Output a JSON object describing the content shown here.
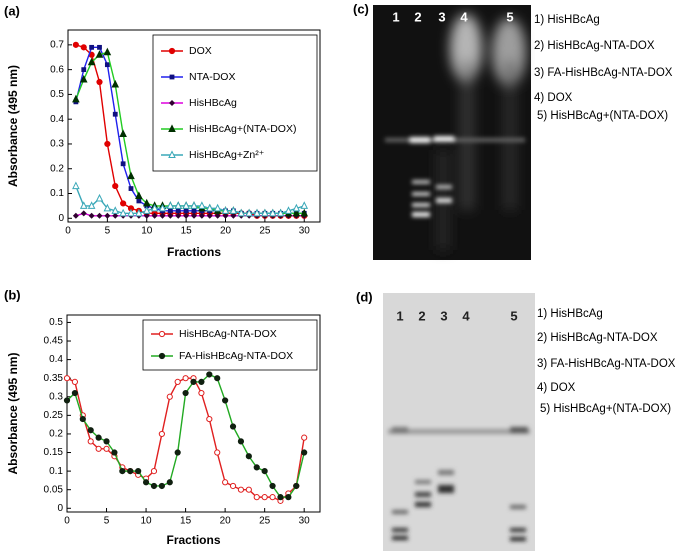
{
  "chart_data": [
    {
      "type": "line",
      "panel_label": "(a)",
      "x_label": "Fractions",
      "y_label": "Absorbance (495 nm)",
      "xlim": [
        0,
        32
      ],
      "xticks": [
        0,
        5,
        10,
        15,
        20,
        25,
        30
      ],
      "ylim": [
        -0.015,
        0.76
      ],
      "yticks": [
        0,
        0.1,
        0.2,
        0.3,
        0.4,
        0.5,
        0.6,
        0.7
      ],
      "legend": "upper right",
      "x": [
        1,
        2,
        3,
        4,
        5,
        6,
        7,
        8,
        9,
        10,
        11,
        12,
        13,
        14,
        15,
        16,
        17,
        18,
        19,
        20,
        21,
        22,
        23,
        24,
        25,
        26,
        27,
        28,
        29,
        30
      ],
      "series": [
        {
          "name": "DOX",
          "color": "#e00000",
          "marker": "circle",
          "marker_color": "#e00000",
          "values": [
            0.7,
            0.69,
            0.66,
            0.55,
            0.3,
            0.13,
            0.06,
            0.04,
            0.03,
            0.02,
            0.02,
            0.02,
            0.02,
            0.02,
            0.02,
            0.02,
            0.02,
            0.02,
            0.02,
            0.02,
            0.02,
            0.02,
            0.02,
            0.01,
            0.01,
            0.01,
            0.01,
            0.01,
            0.01,
            0.01
          ]
        },
        {
          "name": "NTA-DOX",
          "color": "#2020ee",
          "marker": "square",
          "marker_color": "#101080",
          "values": [
            0.47,
            0.6,
            0.69,
            0.69,
            0.62,
            0.42,
            0.22,
            0.12,
            0.07,
            0.05,
            0.04,
            0.03,
            0.03,
            0.03,
            0.03,
            0.03,
            0.03,
            0.03,
            0.03,
            0.03,
            0.03,
            0.02,
            0.02,
            0.02,
            0.02,
            0.02,
            0.02,
            0.02,
            0.02,
            0.02
          ]
        },
        {
          "name": "HisHBcAg",
          "color": "#dd00dd",
          "marker": "diamond",
          "marker_color": "#300030",
          "values": [
            0.01,
            0.02,
            0.01,
            0.01,
            0.01,
            0.01,
            0.01,
            0.01,
            0.01,
            0.01,
            0.01,
            0.01,
            0.01,
            0.01,
            0.01,
            0.01,
            0.01,
            0.01,
            0.01,
            0.01,
            0.01,
            0.01,
            0.01,
            0.01,
            0.01,
            0.01,
            0.01,
            0.01,
            0.01,
            0.01
          ]
        },
        {
          "name": "HisHBcAg+(NTA-DOX)",
          "color": "#22cc22",
          "marker": "triangle",
          "marker_color": "#003000",
          "values": [
            0.48,
            0.56,
            0.63,
            0.66,
            0.67,
            0.54,
            0.34,
            0.17,
            0.09,
            0.06,
            0.05,
            0.05,
            0.05,
            0.05,
            0.05,
            0.05,
            0.04,
            0.04,
            0.03,
            0.03,
            0.03,
            0.02,
            0.02,
            0.02,
            0.02,
            0.02,
            0.02,
            0.02,
            0.02,
            0.02
          ]
        },
        {
          "name": "HisHBcAg+Zn²⁺",
          "color": "#3aa8b8",
          "marker": "triangle-open",
          "marker_color": "#3aa8b8",
          "values": [
            0.13,
            0.05,
            0.05,
            0.08,
            0.04,
            0.03,
            0.02,
            0.02,
            0.02,
            0.03,
            0.04,
            0.04,
            0.05,
            0.05,
            0.05,
            0.05,
            0.05,
            0.04,
            0.04,
            0.03,
            0.03,
            0.02,
            0.02,
            0.02,
            0.02,
            0.02,
            0.02,
            0.03,
            0.04,
            0.05
          ]
        }
      ]
    },
    {
      "type": "line",
      "panel_label": "(b)",
      "x_label": "Fractions",
      "y_label": "Absorbance (495 nm)",
      "xlim": [
        0,
        32
      ],
      "xticks": [
        0,
        5,
        10,
        15,
        20,
        25,
        30
      ],
      "ylim": [
        -0.01,
        0.52
      ],
      "yticks": [
        0,
        0.05,
        0.1,
        0.15,
        0.2,
        0.25,
        0.3,
        0.35,
        0.4,
        0.45,
        0.5
      ],
      "legend": "upper right",
      "x": [
        0,
        1,
        2,
        3,
        4,
        5,
        6,
        7,
        8,
        9,
        10,
        11,
        12,
        13,
        14,
        15,
        16,
        17,
        18,
        19,
        20,
        21,
        22,
        23,
        24,
        25,
        26,
        27,
        28,
        29,
        30
      ],
      "series": [
        {
          "name": "HisHBcAg-NTA-DOX",
          "color": "#e02020",
          "marker": "circle-open",
          "marker_color": "#e02020",
          "values": [
            0.35,
            0.34,
            0.25,
            0.18,
            0.16,
            0.16,
            0.14,
            0.11,
            0.1,
            0.09,
            0.08,
            0.1,
            0.2,
            0.3,
            0.34,
            0.35,
            0.35,
            0.31,
            0.24,
            0.15,
            0.07,
            0.06,
            0.05,
            0.05,
            0.03,
            0.03,
            0.03,
            0.02,
            0.04,
            0.06,
            0.19
          ]
        },
        {
          "name": "FA-HisHBcAg-NTA-DOX",
          "color": "#22aa22",
          "marker": "circle",
          "marker_color": "#102010",
          "values": [
            0.29,
            0.31,
            0.24,
            0.21,
            0.19,
            0.18,
            0.15,
            0.1,
            0.1,
            0.1,
            0.07,
            0.06,
            0.06,
            0.07,
            0.15,
            0.31,
            0.34,
            0.34,
            0.36,
            0.35,
            0.29,
            0.22,
            0.18,
            0.14,
            0.11,
            0.1,
            0.06,
            0.03,
            0.03,
            0.06,
            0.15
          ]
        }
      ]
    }
  ],
  "gel_c": {
    "panel_label": "(c)",
    "lanes": [
      "1",
      "2",
      "3",
      "4",
      "5"
    ],
    "legend": [
      "1) HisHBcAg",
      "2) HisHBcAg-NTA-DOX",
      "3) FA-HisHBcAg-NTA-DOX",
      "4) DOX",
      "5) HisHBcAg+(NTA-DOX)"
    ]
  },
  "gel_d": {
    "panel_label": "(d)",
    "lanes": [
      "1",
      "2",
      "3",
      "4",
      "5"
    ],
    "legend": [
      "1) HisHBcAg",
      "2) HisHBcAg-NTA-DOX",
      "3) FA-HisHBcAg-NTA-DOX",
      "4) DOX",
      "5) HisHBcAg+(NTA-DOX)"
    ]
  }
}
